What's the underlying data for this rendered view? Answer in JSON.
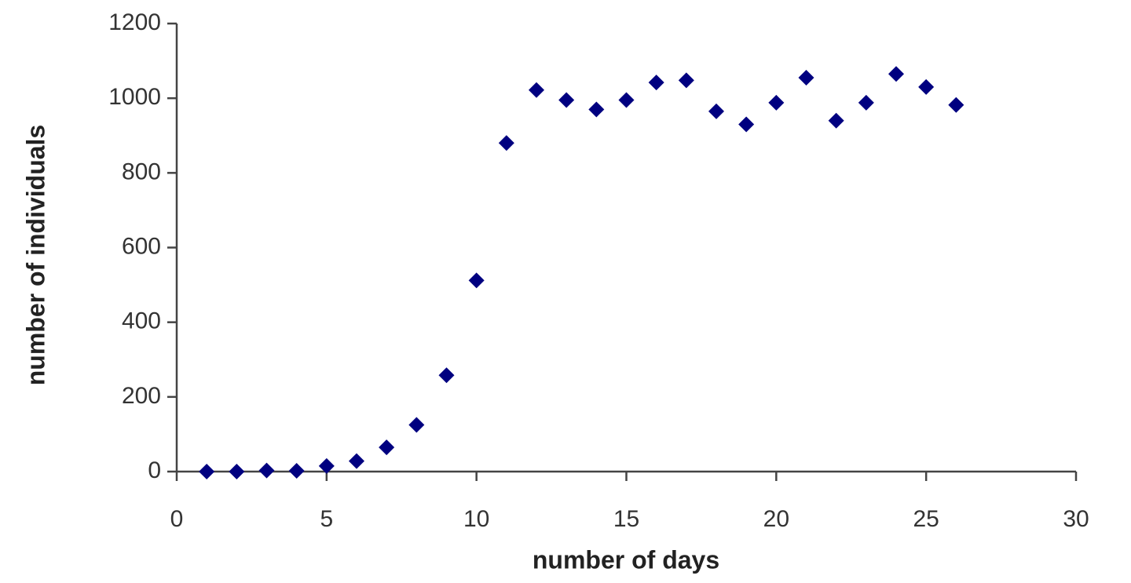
{
  "chart_data": {
    "type": "scatter",
    "x_label": "number of days",
    "y_label": "number of individuals",
    "series": [
      {
        "color": "#000080",
        "x": [
          1,
          2,
          3,
          4,
          5,
          6,
          7,
          8,
          9,
          10,
          11,
          12,
          13,
          14,
          15,
          16,
          17,
          18,
          19,
          20,
          21,
          22,
          23,
          24,
          25,
          26
        ],
        "values": [
          0,
          0,
          3,
          2,
          15,
          28,
          65,
          125,
          258,
          512,
          880,
          1022,
          995,
          970,
          995,
          1042,
          1048,
          965,
          930,
          988,
          1055,
          940,
          988,
          1065,
          1030,
          982
        ]
      }
    ],
    "xlim": [
      0,
      30
    ],
    "xticks": [
      0,
      5,
      10,
      15,
      20,
      25,
      30
    ],
    "ylim": [
      0,
      1200
    ],
    "yticks": [
      0,
      200,
      400,
      600,
      800,
      1000,
      1200
    ],
    "grid": false
  }
}
